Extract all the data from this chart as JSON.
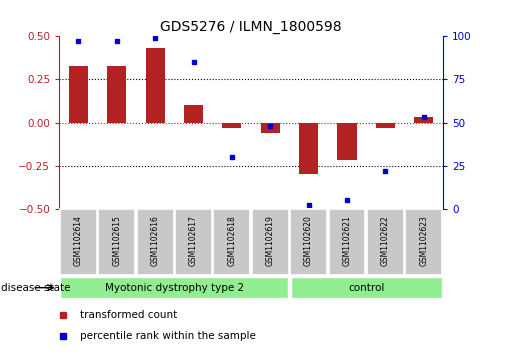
{
  "title": "GDS5276 / ILMN_1800598",
  "samples": [
    "GSM1102614",
    "GSM1102615",
    "GSM1102616",
    "GSM1102617",
    "GSM1102618",
    "GSM1102619",
    "GSM1102620",
    "GSM1102621",
    "GSM1102622",
    "GSM1102623"
  ],
  "bar_values": [
    0.33,
    0.33,
    0.43,
    0.1,
    -0.03,
    -0.06,
    -0.3,
    -0.22,
    -0.03,
    0.03
  ],
  "percentile_values": [
    97,
    97,
    99,
    85,
    30,
    48,
    2,
    5,
    22,
    53
  ],
  "group1_label": "Myotonic dystrophy type 2",
  "group2_label": "control",
  "group1_count": 6,
  "group2_count": 4,
  "bar_color": "#B22222",
  "marker_color": "#0000CC",
  "ylim_left": [
    -0.5,
    0.5
  ],
  "ylim_right": [
    0,
    100
  ],
  "yticks_left": [
    -0.5,
    -0.25,
    0.0,
    0.25,
    0.5
  ],
  "yticks_right": [
    0,
    25,
    50,
    75,
    100
  ],
  "legend_label1": "transformed count",
  "legend_label2": "percentile rank within the sample",
  "disease_state_label": "disease state",
  "group1_color": "#90EE90",
  "group2_color": "#90EE90",
  "sample_box_color": "#C8C8C8",
  "bar_width": 0.5
}
